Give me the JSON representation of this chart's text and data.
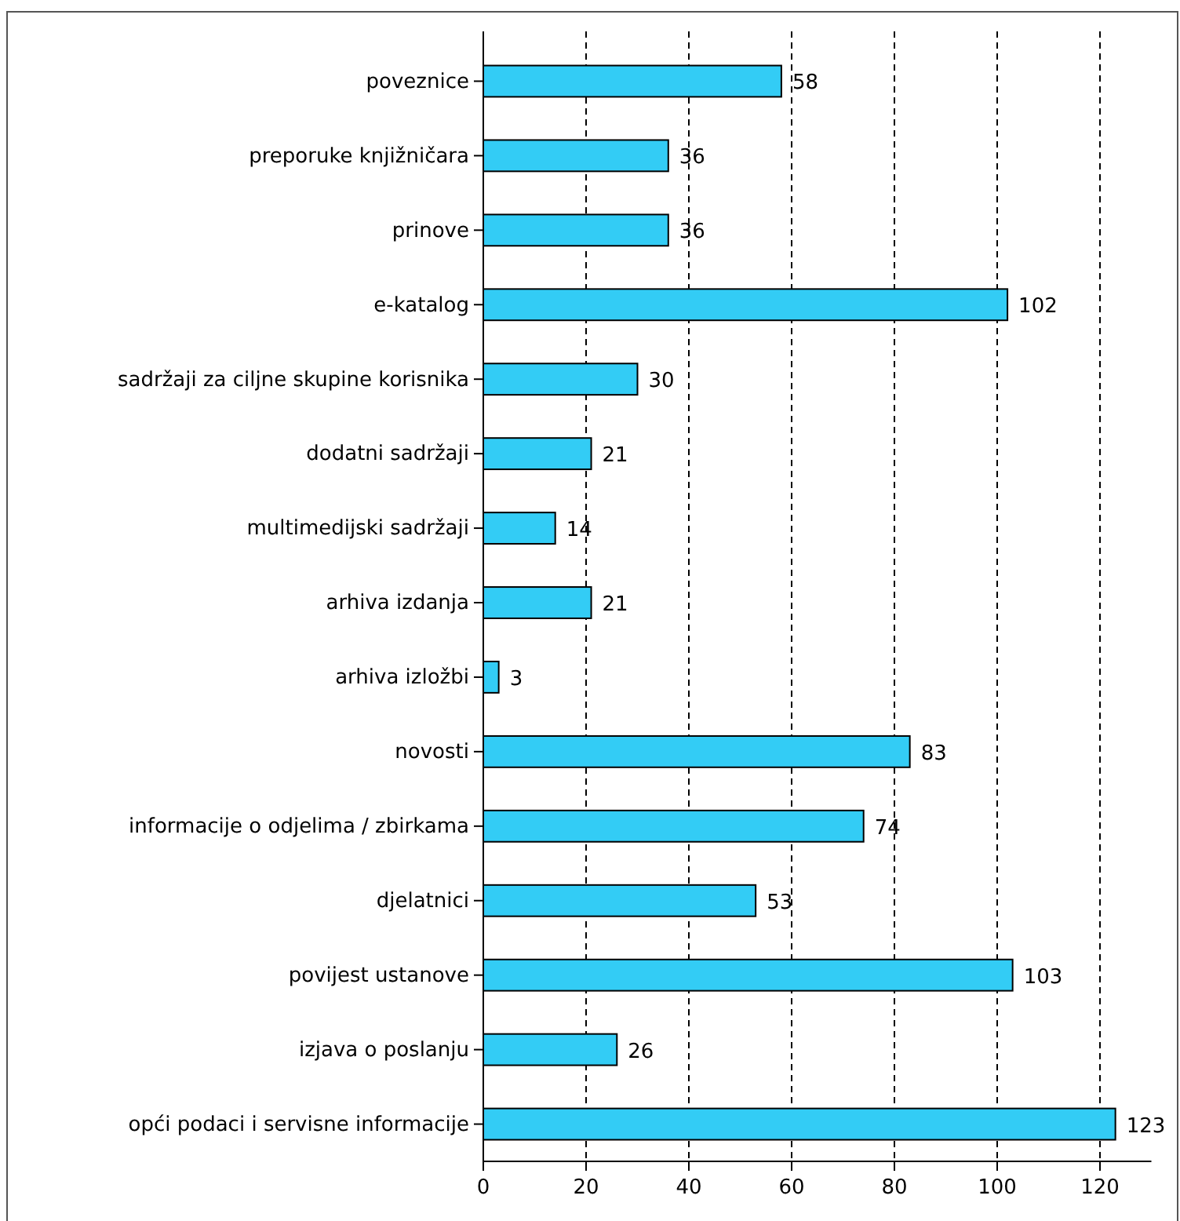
{
  "chart_data": {
    "type": "bar",
    "orientation": "horizontal",
    "categories": [
      "poveznice",
      "preporuke knjižničara",
      "prinove",
      "e-katalog",
      "sadržaji za ciljne skupine korisnika",
      "dodatni sadržaji",
      "multimedijski sadržaji",
      "arhiva izdanja",
      "arhiva izložbi",
      "novosti",
      "informacije o odjelima / zbirkama",
      "djelatnici",
      "povijest ustanove",
      "izjava o poslanju",
      "opći podaci i servisne informacije"
    ],
    "values": [
      58,
      36,
      36,
      102,
      30,
      21,
      14,
      21,
      3,
      83,
      74,
      53,
      103,
      26,
      123
    ],
    "color": "#33ccf5",
    "xlim": [
      0,
      130
    ],
    "xticks": [
      0,
      20,
      40,
      60,
      80,
      100,
      120
    ],
    "grid": "x",
    "data_labels": true
  }
}
